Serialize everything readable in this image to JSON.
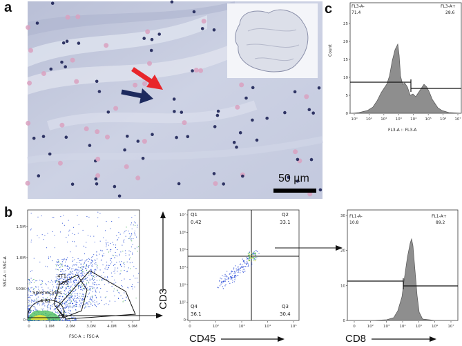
{
  "panels": {
    "a": {
      "letter": "a",
      "scale_bar_label": "50 µm",
      "colors": {
        "tissue": "#c6cbe0",
        "nuclei": "#1e2457",
        "eosin": "#d9a1c0",
        "red_arrow": "#e8262b",
        "blue_arrow": "#1d2a5e"
      }
    },
    "b": {
      "letter": "b",
      "plot1": {
        "xlabel": "FSC-A :: FSC-A",
        "ylabel": "SSC-A :: SSC-A",
        "xticks": [
          "0",
          "1.0M",
          "2.0M",
          "3.0M",
          "4.0M",
          "5.0M"
        ],
        "yticks": [
          "0",
          "500K",
          "1.0M",
          "1.5M"
        ],
        "gates": [
          {
            "name": "4T1",
            "value": "3.65"
          },
          {
            "name": "Splenocytes",
            "value": "4.81"
          }
        ]
      },
      "plot2": {
        "xlabel": "CD45",
        "ylabel": "CD3",
        "xticks": [
          "0",
          "10²",
          "10³",
          "10⁴",
          "10⁵"
        ],
        "yticks": [
          "0",
          "10²",
          "10³",
          "10⁴",
          "10⁵",
          "10⁶",
          "10⁷"
        ],
        "quadrants": [
          {
            "name": "Q1",
            "value": "0.42"
          },
          {
            "name": "Q2",
            "value": "33.1"
          },
          {
            "name": "Q3",
            "value": "30.4"
          },
          {
            "name": "Q4",
            "value": "36.1"
          }
        ]
      },
      "plot3": {
        "xlabel": "CD8",
        "yticks": [
          "0",
          "10",
          "20",
          "30"
        ],
        "xticks": [
          "0",
          "10²",
          "10³",
          "10⁴",
          "10⁵",
          "10⁶",
          "10⁷"
        ],
        "gates": [
          {
            "name": "FL1-A-",
            "value": "10.8"
          },
          {
            "name": "FL1-A+",
            "value": "89.2"
          }
        ]
      }
    },
    "c": {
      "letter": "c",
      "xlabel": "FL3-A :: FL3-A",
      "ylabel": "Count",
      "yticks": [
        "0",
        "5",
        "10",
        "15",
        "20",
        "25"
      ],
      "xticks": [
        "10⁰",
        "10¹",
        "10²",
        "10³",
        "10⁴",
        "10⁵",
        "10⁶",
        "10⁷"
      ],
      "gates": [
        {
          "name": "FL3-A-",
          "value": "71.4"
        },
        {
          "name": "FL3-A+",
          "value": "28.6"
        }
      ]
    }
  }
}
